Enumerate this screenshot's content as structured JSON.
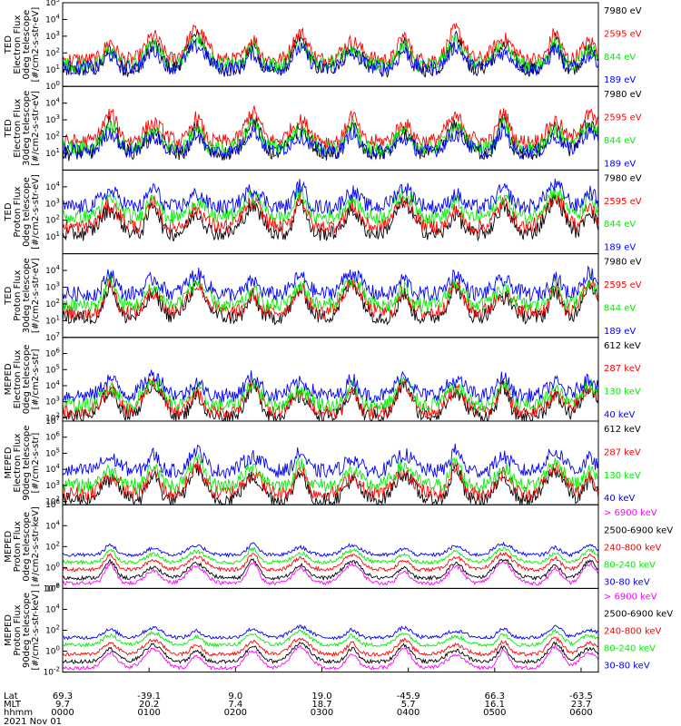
{
  "chart_data": {
    "type": "line",
    "date": "2021 Nov 01",
    "x_axis": {
      "row_labels": [
        "Lat",
        "MLT",
        "hhmm"
      ],
      "ticks": [
        {
          "hhmm": "0000",
          "lat": "69.3",
          "mlt": "9.7"
        },
        {
          "hhmm": "0100",
          "lat": "-39.1",
          "mlt": "20.2"
        },
        {
          "hhmm": "0200",
          "lat": "9.0",
          "mlt": "7.4"
        },
        {
          "hhmm": "0300",
          "lat": "19.0",
          "mlt": "18.7"
        },
        {
          "hhmm": "0400",
          "lat": "-45.9",
          "mlt": "5.7"
        },
        {
          "hhmm": "0500",
          "lat": "66.3",
          "mlt": "16.1"
        },
        {
          "hhmm": "0600",
          "lat": "-63.5",
          "mlt": "23.7"
        }
      ],
      "range_hours": [
        0,
        6.2
      ]
    },
    "panels": [
      {
        "instrument": "TED",
        "ylabel": [
          "TED",
          "Electron Flux",
          "0deg telescope",
          "[#/cm2-s-str-eV]"
        ],
        "log_range": [
          0,
          5
        ],
        "tick_exps": [
          0,
          1,
          2,
          3,
          4,
          5
        ],
        "series": [
          {
            "name": "7980 eV",
            "color": "#000000",
            "level": 1.0
          },
          {
            "name": "2595 eV",
            "color": "#ff0000",
            "level": 1.6
          },
          {
            "name": "844 eV",
            "color": "#00ee00",
            "level": 1.3
          },
          {
            "name": "189 eV",
            "color": "#0000ff",
            "level": 1.1
          }
        ]
      },
      {
        "instrument": "TED",
        "ylabel": [
          "TED",
          "Electron Flux",
          "30deg telescope",
          "[#/cm2-s-str-eV]"
        ],
        "log_range": [
          0,
          5
        ],
        "tick_exps": [
          1,
          2,
          3,
          4
        ],
        "series": [
          {
            "name": "7980 eV",
            "color": "#000000",
            "level": 1.0
          },
          {
            "name": "2595 eV",
            "color": "#ff0000",
            "level": 1.7
          },
          {
            "name": "844 eV",
            "color": "#00ee00",
            "level": 1.3
          },
          {
            "name": "189 eV",
            "color": "#0000ff",
            "level": 1.1
          }
        ]
      },
      {
        "instrument": "TED",
        "ylabel": [
          "TED",
          "Proton Flux",
          "0deg telescope",
          "[#/cm2-s-str-eV]"
        ],
        "log_range": [
          0,
          5
        ],
        "tick_exps": [
          1,
          2,
          3,
          4
        ],
        "series": [
          {
            "name": "7980 eV",
            "color": "#000000",
            "level": 1.2
          },
          {
            "name": "2595 eV",
            "color": "#ff0000",
            "level": 1.6
          },
          {
            "name": "844 eV",
            "color": "#00ee00",
            "level": 2.2
          },
          {
            "name": "189 eV",
            "color": "#0000ff",
            "level": 2.8
          }
        ]
      },
      {
        "instrument": "TED",
        "ylabel": [
          "TED",
          "Proton Flux",
          "30deg telescope",
          "[#/cm2-s-str-eV]"
        ],
        "log_range": [
          0,
          5
        ],
        "tick_exps": [
          1,
          2,
          3,
          4
        ],
        "series": [
          {
            "name": "7980 eV",
            "color": "#000000",
            "level": 1.2
          },
          {
            "name": "2595 eV",
            "color": "#ff0000",
            "level": 1.5
          },
          {
            "name": "844 eV",
            "color": "#00ee00",
            "level": 1.9
          },
          {
            "name": "189 eV",
            "color": "#0000ff",
            "level": 2.6
          }
        ]
      },
      {
        "instrument": "MEPED",
        "ylabel": [
          "MEPED",
          "Electron Flux",
          "0deg telescope",
          "[#/cm2-s-str]"
        ],
        "log_range": [
          1.8,
          7
        ],
        "tick_exps": [
          2,
          3,
          4,
          5,
          6,
          7
        ],
        "series": [
          {
            "name": "612 keV",
            "color": "#000000",
            "level": 2.1
          },
          {
            "name": "287 keV",
            "color": "#ff0000",
            "level": 2.4
          },
          {
            "name": "130 keV",
            "color": "#00ee00",
            "level": 2.8
          },
          {
            "name": "40 keV",
            "color": "#0000ff",
            "level": 3.4
          }
        ]
      },
      {
        "instrument": "MEPED",
        "ylabel": [
          "MEPED",
          "Electron Flux",
          "90deg telescope",
          "[#/cm2-s-str]"
        ],
        "log_range": [
          1.8,
          7
        ],
        "tick_exps": [
          2,
          3,
          4,
          5,
          6,
          7
        ],
        "series": [
          {
            "name": "612 keV",
            "color": "#000000",
            "level": 2.1
          },
          {
            "name": "287 keV",
            "color": "#ff0000",
            "level": 2.5
          },
          {
            "name": "130 keV",
            "color": "#00ee00",
            "level": 3.0
          },
          {
            "name": "40 keV",
            "color": "#0000ff",
            "level": 3.9
          }
        ]
      },
      {
        "instrument": "MEPED",
        "ylabel": [
          "MEPED",
          "Proton Flux",
          "0deg telescope",
          "[#/cm2-s-str-keV]"
        ],
        "log_range": [
          -2,
          6
        ],
        "tick_exps": [
          -2,
          0,
          2,
          4,
          6
        ],
        "series": [
          {
            "name": "> 6900 keV",
            "color": "#ff00ff",
            "level": -1.5
          },
          {
            "name": "2500-6900 keV",
            "color": "#000000",
            "level": -1.0
          },
          {
            "name": "240-800 keV",
            "color": "#ff0000",
            "level": -0.2
          },
          {
            "name": "80-240 keV",
            "color": "#00ee00",
            "level": 0.5
          },
          {
            "name": "30-80 keV",
            "color": "#0000ff",
            "level": 1.2
          }
        ]
      },
      {
        "instrument": "MEPED",
        "ylabel": [
          "MEPED",
          "Proton Flux",
          "90deg telescope",
          "[#/cm2-s-str-keV]"
        ],
        "log_range": [
          -2,
          6
        ],
        "tick_exps": [
          -2,
          0,
          2,
          4,
          6
        ],
        "series": [
          {
            "name": "> 6900 keV",
            "color": "#ff00ff",
            "level": -1.6
          },
          {
            "name": "2500-6900 keV",
            "color": "#000000",
            "level": -1.0
          },
          {
            "name": "240-800 keV",
            "color": "#ff0000",
            "level": -0.3
          },
          {
            "name": "80-240 keV",
            "color": "#00ee00",
            "level": 0.6
          },
          {
            "name": "30-80 keV",
            "color": "#0000ff",
            "level": 1.3
          }
        ]
      }
    ],
    "pass_centers_hours": [
      0.55,
      1.05,
      1.55,
      2.2,
      2.75,
      3.35,
      3.95,
      4.55,
      5.1,
      5.7,
      6.1
    ]
  }
}
